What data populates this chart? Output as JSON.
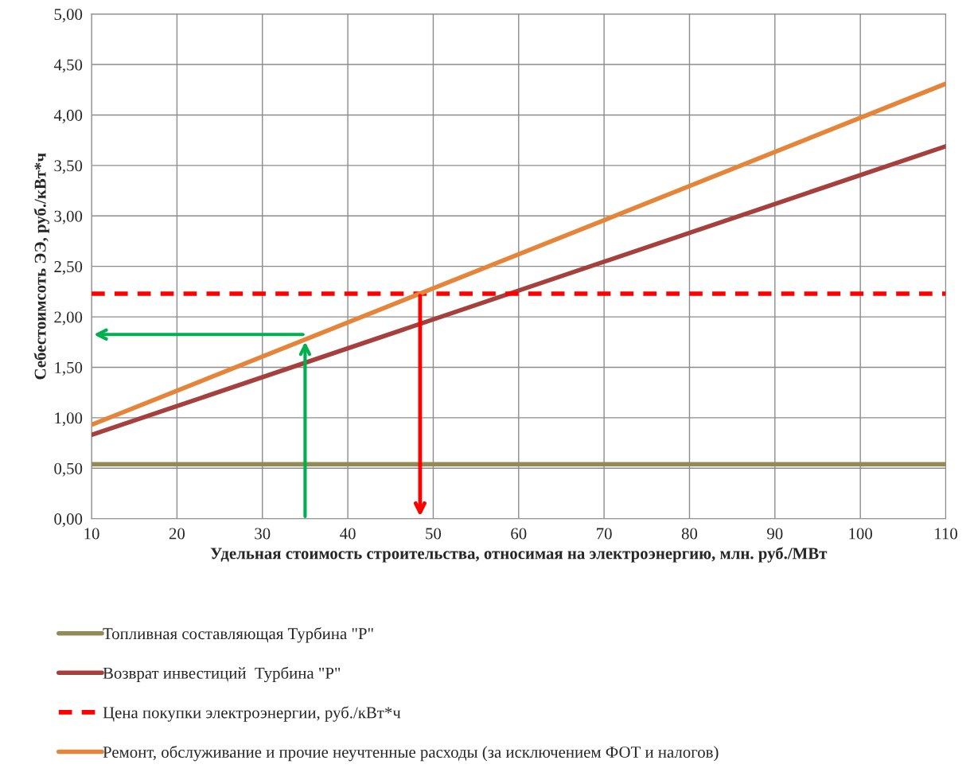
{
  "chart_data": {
    "type": "line",
    "xlabel": "Удельная стоимость строительства, относимая на электроэнергию, млн. руб./МВт",
    "ylabel": "Себестоимсоть ЭЭ, руб./кВт*ч",
    "x": [
      10,
      110
    ],
    "series": [
      {
        "name": "Топливная составляющая Турбина \"Р\"",
        "color": "#948a54",
        "values": [
          0.54,
          0.54
        ],
        "line_style": "solid"
      },
      {
        "name": "Возврат инвестиций  Турбина \"Р\"",
        "color": "#a5403c",
        "values": [
          0.83,
          3.69
        ],
        "line_style": "solid"
      },
      {
        "name": "Цена покупки электроэнергии, руб./кВт*ч",
        "color": "#ff0000",
        "values": [
          2.23,
          2.23
        ],
        "line_style": "dashed"
      },
      {
        "name": "Ремонт, обслуживание и прочие неучтенные расходы (за исключением ФОТ и налогов)",
        "color": "#e5853a",
        "values": [
          0.93,
          4.31
        ],
        "line_style": "solid"
      }
    ],
    "xlim": [
      10,
      110
    ],
    "xticks": [
      10,
      20,
      30,
      40,
      50,
      60,
      70,
      80,
      90,
      100,
      110
    ],
    "ylim": [
      0,
      5
    ],
    "yticks": [
      {
        "value": 0,
        "label": "0,00"
      },
      {
        "value": 0.5,
        "label": "0,50"
      },
      {
        "value": 1,
        "label": "1,00"
      },
      {
        "value": 1.5,
        "label": "1,50"
      },
      {
        "value": 2,
        "label": "2,00"
      },
      {
        "value": 2.5,
        "label": "2,50"
      },
      {
        "value": 3,
        "label": "3,00"
      },
      {
        "value": 3.5,
        "label": "3,50"
      },
      {
        "value": 4,
        "label": "4,00"
      },
      {
        "value": 4.5,
        "label": "4,50"
      },
      {
        "value": 5,
        "label": "5,00"
      }
    ],
    "grid": true,
    "legend": "bottom",
    "marker": "none"
  }
}
